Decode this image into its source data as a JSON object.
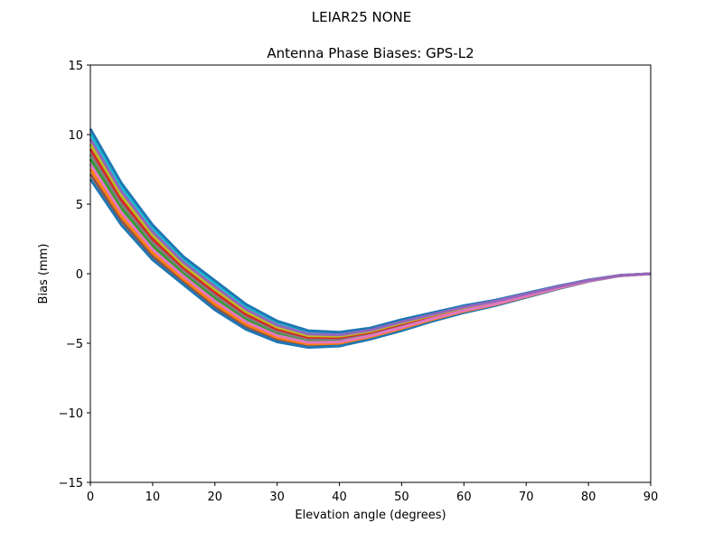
{
  "suptitle": "LEIAR25          NONE",
  "chart_data": {
    "type": "line",
    "title": "Antenna Phase Biases: GPS-L2",
    "xlabel": "Elevation angle (degrees)",
    "ylabel": "Bias (mm)",
    "xlim": [
      0,
      90
    ],
    "ylim": [
      -15,
      15
    ],
    "xticks": [
      0,
      10,
      20,
      30,
      40,
      50,
      60,
      70,
      80,
      90
    ],
    "xtick_labels": [
      "0",
      "10",
      "20",
      "30",
      "40",
      "50",
      "60",
      "70",
      "80",
      "90"
    ],
    "yticks": [
      -15,
      -10,
      -5,
      0,
      5,
      10,
      15
    ],
    "ytick_labels": [
      "−15",
      "−10",
      "−5",
      "0",
      "5",
      "10",
      "15"
    ],
    "grid": false,
    "legend": "none",
    "x": [
      0,
      5,
      10,
      15,
      20,
      25,
      30,
      35,
      40,
      45,
      50,
      55,
      60,
      65,
      70,
      75,
      80,
      85,
      90
    ],
    "colors": [
      "#1f77b4",
      "#ff7f0e",
      "#2ca02c",
      "#d62728",
      "#9467bd",
      "#8c564b",
      "#e377c2",
      "#7f7f7f",
      "#bcbd22",
      "#17becf"
    ],
    "series": [
      {
        "values": [
          6.8,
          3.5,
          1.0,
          -0.8,
          -2.6,
          -4.0,
          -4.9,
          -5.3,
          -5.2,
          -4.7,
          -4.1,
          -3.4,
          -2.8,
          -2.3,
          -1.7,
          -1.1,
          -0.55,
          -0.15,
          0
        ]
      },
      {
        "values": [
          7.52,
          4.1,
          1.5,
          -0.4,
          -2.18,
          -3.64,
          -4.6,
          -5.06,
          -5.0,
          -4.54,
          -3.94,
          -3.28,
          -2.7,
          -2.22,
          -1.64,
          -1.06,
          -0.53,
          -0.14,
          0
        ]
      },
      {
        "values": [
          8.24,
          4.7,
          2.0,
          0.0,
          -1.76,
          -3.28,
          -4.3,
          -4.82,
          -4.8,
          -4.38,
          -3.78,
          -3.16,
          -2.6,
          -2.14,
          -1.58,
          -1.02,
          -0.51,
          -0.14,
          0
        ]
      },
      {
        "values": [
          8.96,
          5.3,
          2.5,
          0.4,
          -1.34,
          -2.92,
          -4.0,
          -4.58,
          -4.6,
          -4.22,
          -3.62,
          -3.04,
          -2.5,
          -2.06,
          -1.52,
          -0.98,
          -0.49,
          -0.13,
          0
        ]
      },
      {
        "values": [
          9.68,
          5.9,
          3.0,
          0.8,
          -0.92,
          -2.56,
          -3.7,
          -4.34,
          -4.4,
          -4.06,
          -3.46,
          -2.92,
          -2.4,
          -1.98,
          -1.46,
          -0.94,
          -0.47,
          -0.13,
          0
        ]
      },
      {
        "values": [
          7.16,
          3.8,
          1.25,
          -0.6,
          -2.39,
          -3.82,
          -4.75,
          -5.18,
          -5.1,
          -4.62,
          -4.02,
          -3.34,
          -2.75,
          -2.26,
          -1.67,
          -1.08,
          -0.54,
          -0.15,
          0
        ]
      },
      {
        "values": [
          7.88,
          4.4,
          1.75,
          -0.2,
          -1.97,
          -3.46,
          -4.45,
          -4.94,
          -4.9,
          -4.46,
          -3.86,
          -3.22,
          -2.65,
          -2.18,
          -1.61,
          -1.04,
          -0.52,
          -0.14,
          0
        ]
      },
      {
        "values": [
          8.6,
          5.0,
          2.25,
          0.2,
          -1.55,
          -3.1,
          -4.15,
          -4.7,
          -4.7,
          -4.3,
          -3.7,
          -3.1,
          -2.55,
          -2.1,
          -1.55,
          -1.0,
          -0.5,
          -0.14,
          0
        ]
      },
      {
        "values": [
          9.32,
          5.6,
          2.75,
          0.6,
          -1.13,
          -2.74,
          -3.85,
          -4.46,
          -4.5,
          -4.14,
          -3.54,
          -2.98,
          -2.45,
          -2.02,
          -1.49,
          -0.96,
          -0.48,
          -0.13,
          0
        ]
      },
      {
        "values": [
          10.04,
          6.2,
          3.25,
          1.0,
          -0.71,
          -2.38,
          -3.55,
          -4.22,
          -4.3,
          -3.98,
          -3.38,
          -2.86,
          -2.35,
          -1.94,
          -1.43,
          -0.92,
          -0.46,
          -0.12,
          0
        ]
      },
      {
        "values": [
          10.4,
          6.5,
          3.5,
          1.2,
          -0.5,
          -2.2,
          -3.4,
          -4.1,
          -4.2,
          -3.9,
          -3.3,
          -2.8,
          -2.3,
          -1.9,
          -1.4,
          -0.9,
          -0.45,
          -0.12,
          0
        ]
      }
    ]
  }
}
